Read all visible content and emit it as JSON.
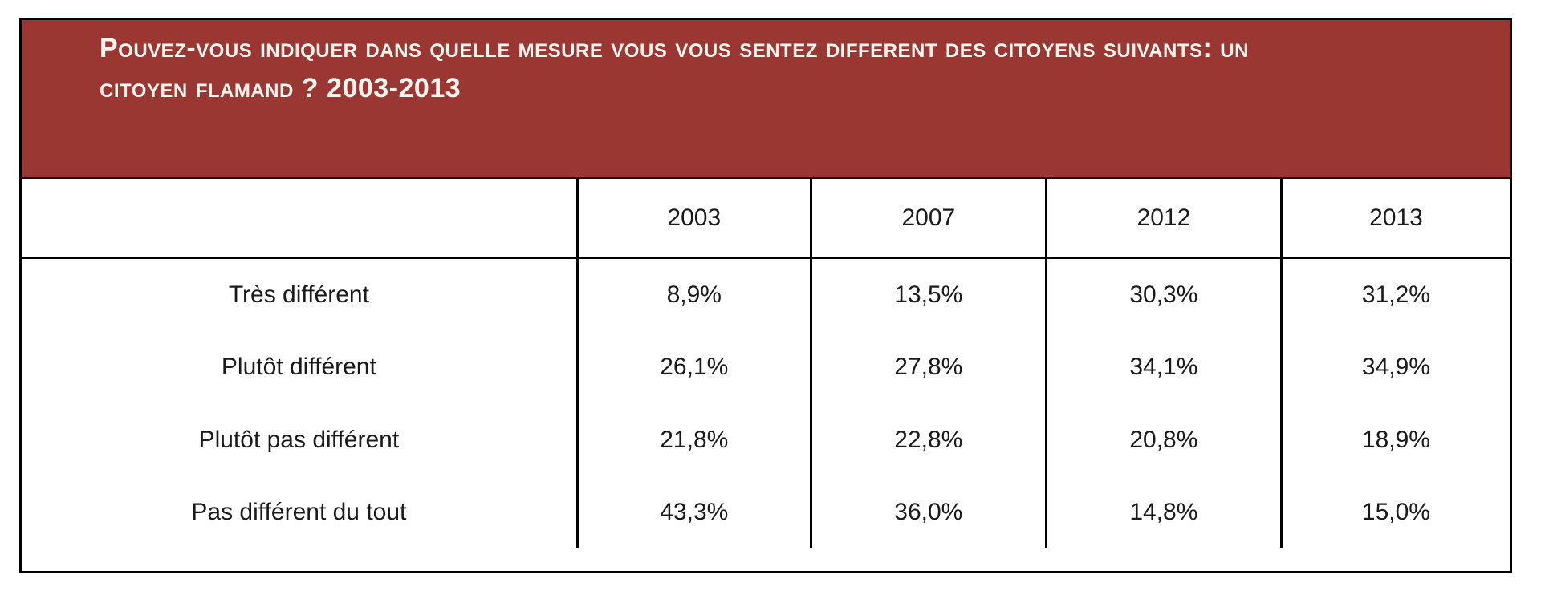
{
  "colors": {
    "header_bg": "#9a3733",
    "header_text": "#faf5ef",
    "border_color": "#000000",
    "body_text": "#1a1a1a",
    "cell_bg": "#ffffff"
  },
  "chart_data": {
    "type": "table",
    "title": "Pouvez-vous indiquer dans quelle mesure vous vous sentez different des citoyens suivants: un citoyen flamand ?",
    "title_year_range": "2003-2013",
    "columns": [
      "",
      "2003",
      "2007",
      "2012",
      "2013"
    ],
    "rows": [
      {
        "label": "Très différent",
        "values": [
          "8,9%",
          "13,5%",
          "30,3%",
          "31,2%"
        ]
      },
      {
        "label": "Plutôt différent",
        "values": [
          "26,1%",
          "27,8%",
          "34,1%",
          "34,9%"
        ]
      },
      {
        "label": "Plutôt pas différent",
        "values": [
          "21,8%",
          "22,8%",
          "20,8%",
          "18,9%"
        ]
      },
      {
        "label": "Pas différent du tout",
        "values": [
          "43,3%",
          "36,0%",
          "14,8%",
          "15,0%"
        ]
      }
    ],
    "values_numeric": {
      "categories": [
        "2003",
        "2007",
        "2012",
        "2013"
      ],
      "series": [
        {
          "name": "Très différent",
          "values": [
            8.9,
            13.5,
            30.3,
            31.2
          ]
        },
        {
          "name": "Plutôt différent",
          "values": [
            26.1,
            27.8,
            34.1,
            34.9
          ]
        },
        {
          "name": "Plutôt pas différent",
          "values": [
            21.8,
            22.8,
            20.8,
            18.9
          ]
        },
        {
          "name": "Pas différent du tout",
          "values": [
            43.3,
            36.0,
            14.8,
            15.0
          ]
        }
      ],
      "unit": "%"
    }
  }
}
